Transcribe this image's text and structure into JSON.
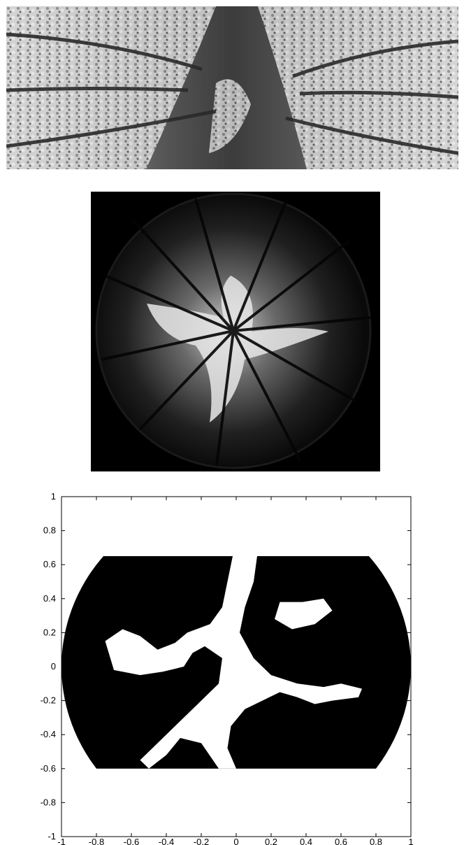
{
  "panels": [
    {
      "id": "panorama",
      "kind": "unwrapped-panoramic-canopy-photo",
      "tone": "grayscale"
    },
    {
      "id": "fisheye",
      "kind": "hemispherical-fisheye-canopy-photo",
      "tone": "grayscale"
    },
    {
      "id": "binary-plot",
      "kind": "binary-canopy-gap-mask"
    }
  ],
  "chart_data": {
    "type": "heatmap",
    "title": "",
    "xlabel": "",
    "ylabel": "",
    "xlim": [
      -1,
      1
    ],
    "ylim": [
      -1,
      1
    ],
    "x_ticks": [
      "-1",
      "-0.8",
      "-0.6",
      "-0.4",
      "-0.2",
      "0",
      "0.2",
      "0.4",
      "0.6",
      "0.8",
      "1"
    ],
    "y_ticks": [
      "1",
      "0.8",
      "0.6",
      "0.4",
      "0.2",
      "0",
      "-0.2",
      "-0.4",
      "-0.6",
      "-0.8",
      "-1"
    ],
    "x_tick_values": [
      -1,
      -0.8,
      -0.6,
      -0.4,
      -0.2,
      0,
      0.2,
      0.4,
      0.6,
      0.8,
      1
    ],
    "y_tick_values": [
      1,
      0.8,
      0.6,
      0.4,
      0.2,
      0,
      -0.2,
      -0.4,
      -0.6,
      -0.8,
      -1
    ],
    "mask_region": {
      "ymin": -0.6,
      "ymax": 0.65,
      "shape": "circle-clipped-band",
      "radius": 1.0
    },
    "colors": {
      "canopy": "#000000",
      "gap": "#ffffff"
    },
    "grid": false
  }
}
